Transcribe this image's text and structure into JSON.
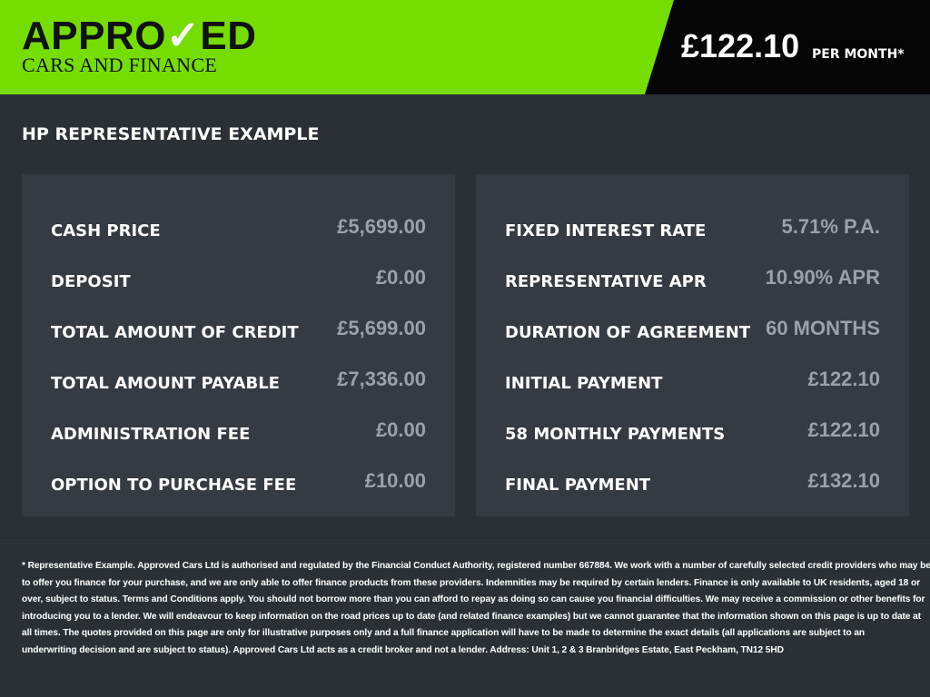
{
  "header": {
    "logo_main_a": "APPRO",
    "logo_main_check": "✓",
    "logo_main_b": "ED",
    "logo_sub": "CARS AND FINANCE",
    "price": "£122.10",
    "per_month": "PER MONTH*",
    "brand_color": "#76dd00"
  },
  "title": "HP REPRESENTATIVE EXAMPLE",
  "left": [
    {
      "label": "CASH PRICE",
      "value": "£5,699.00"
    },
    {
      "label": "DEPOSIT",
      "value": "£0.00"
    },
    {
      "label": "TOTAL AMOUNT OF CREDIT",
      "value": "£5,699.00"
    },
    {
      "label": "TOTAL AMOUNT PAYABLE",
      "value": "£7,336.00"
    },
    {
      "label": "ADMINISTRATION FEE",
      "value": "£0.00"
    },
    {
      "label": "OPTION TO PURCHASE FEE",
      "value": "£10.00"
    }
  ],
  "right": [
    {
      "label": "FIXED INTEREST RATE",
      "value": "5.71% P.A."
    },
    {
      "label": "REPRESENTATIVE APR",
      "value": "10.90% APR"
    },
    {
      "label": "DURATION OF AGREEMENT",
      "value": "60 MONTHS"
    },
    {
      "label": "INITIAL PAYMENT",
      "value": "£122.10"
    },
    {
      "label": "58 MONTHLY PAYMENTS",
      "value": "£122.10"
    },
    {
      "label": "FINAL PAYMENT",
      "value": "£132.10"
    }
  ],
  "footer": [
    "* Representative Example. Approved Cars Ltd is authorised and regulated by the Financial Conduct Authority, registered number 667884. We work with a number of carefully selected credit providers who may be able",
    "to offer you finance for your purchase, and we are only able to offer finance products from these providers. Indemnities may be required by certain lenders. Finance is only available to UK residents, aged 18 or",
    "over, subject to status. Terms and Conditions apply. You should not borrow more than you can afford to repay as doing so can cause you financial difficulties. We may receive a commission or other benefits for",
    "introducing you to a lender. We will endeavour to keep information on the road prices up to date (and related finance examples) but we cannot guarantee that the information shown on this page is up to date at",
    "all times. The quotes provided on this page are only for illustrative purposes only and a full finance application will have to be made to determine the exact details (all applications are subject to an",
    "underwriting decision and are subject to status). Approved Cars Ltd acts as a credit broker and not a lender. Address: Unit 1, 2 & 3 Branbridges Estate, East Peckham, TN12 5HD"
  ]
}
